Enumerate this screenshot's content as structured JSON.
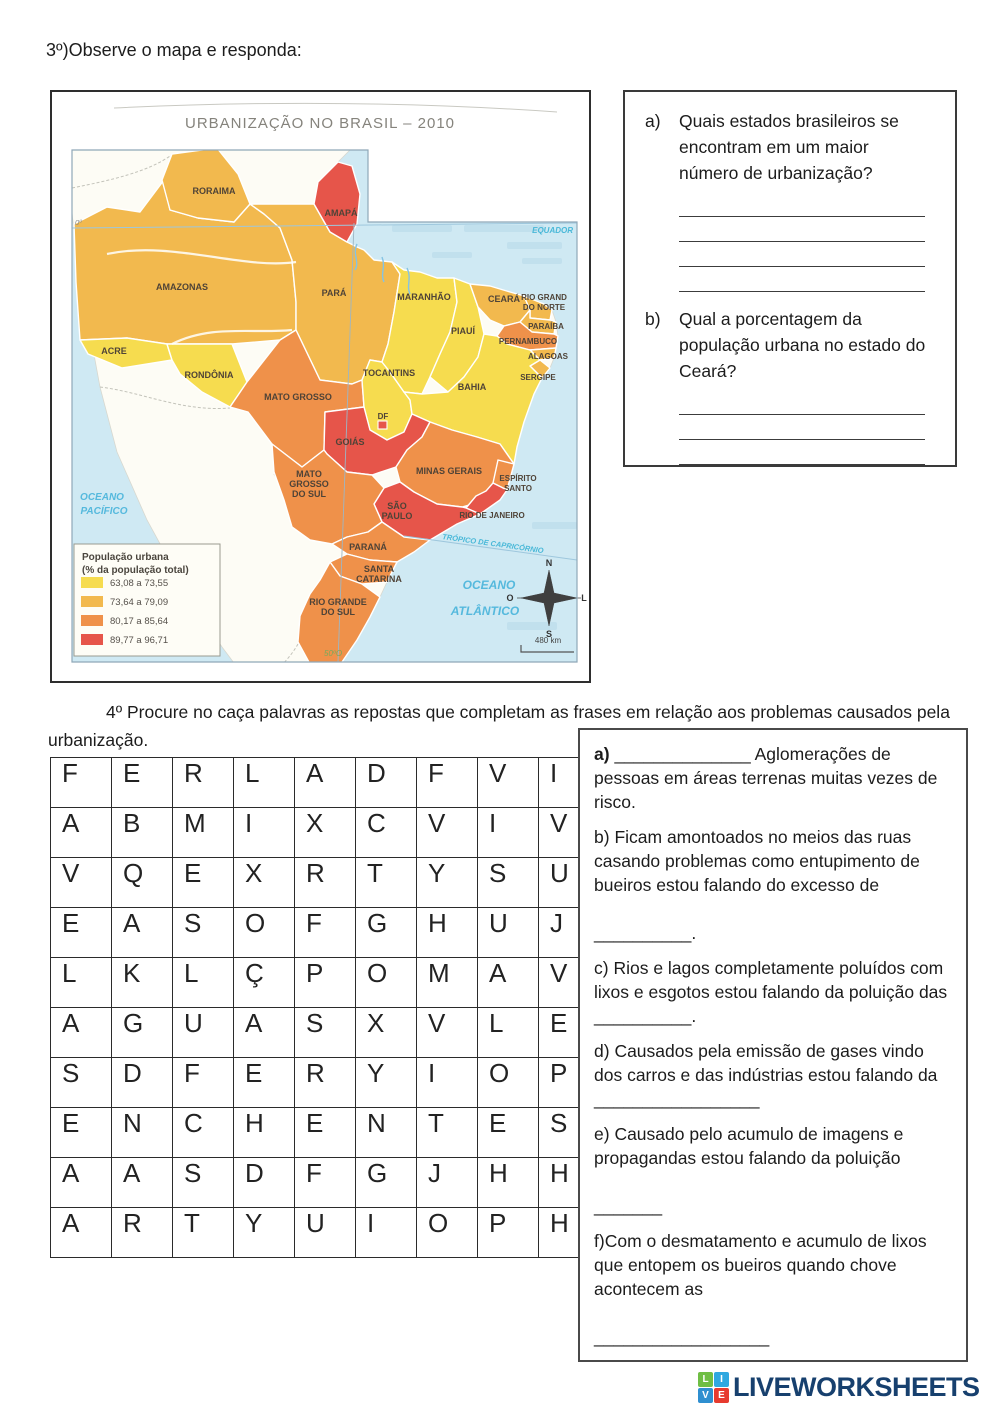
{
  "page": {
    "q3_heading": "3º)Observe o mapa e responda:",
    "q4_paragraph": "4º Procure no caça palavras as repostas que completam as frases em relação aos problemas causados pela urbanização."
  },
  "map": {
    "title": "URBANIZAÇÃO NO BRASIL – 2010",
    "colors": {
      "ocean": "#CFE9F3",
      "land": "#FDFCF5",
      "frame": "#8FA8B8"
    },
    "legend": {
      "title_lines": [
        "População urbana",
        "(% da população total)"
      ],
      "items": [
        {
          "range": "63,08 a 73,55",
          "color": "#F6DC4F"
        },
        {
          "range": "73,64 a 79,09",
          "color": "#F2B94E"
        },
        {
          "range": "80,17 a 85,64",
          "color": "#EF914A"
        },
        {
          "range": "89,77 a 96,71",
          "color": "#E6554A"
        }
      ]
    },
    "labels": {
      "equator_tick": "0º",
      "equator": "EQUADOR",
      "tropic": "TRÓPICO DE CAPRICÓRNIO",
      "meridian": "50ºO",
      "ocean_pacific": [
        "OCEANO",
        "PACÍFICO"
      ],
      "ocean_atlantic": [
        "OCEANO",
        "ATLÂNTICO"
      ],
      "scale": "480 km",
      "compass": {
        "n": "N",
        "s": "S",
        "w": "O",
        "e": "L"
      }
    },
    "states": [
      {
        "id": "amazonas",
        "label": [
          "AMAZONAS"
        ],
        "category": 1
      },
      {
        "id": "roraima",
        "label": [
          "RORAIMA"
        ],
        "category": 1
      },
      {
        "id": "para",
        "label": [
          "PARÁ"
        ],
        "category": 1
      },
      {
        "id": "amapa",
        "label": [
          "AMAPÁ"
        ],
        "category": 3
      },
      {
        "id": "acre",
        "label": [
          "ACRE"
        ],
        "category": 0
      },
      {
        "id": "rondonia",
        "label": [
          "RONDÔNIA"
        ],
        "category": 0
      },
      {
        "id": "mato_grosso",
        "label": [
          "MATO GROSSO"
        ],
        "category": 2
      },
      {
        "id": "tocantins",
        "label": [
          "TOCANTINS"
        ],
        "category": 0
      },
      {
        "id": "maranhao",
        "label": [
          "MARANHÃO"
        ],
        "category": 0
      },
      {
        "id": "piaui",
        "label": [
          "PIAUÍ"
        ],
        "category": 0
      },
      {
        "id": "ceara",
        "label": [
          "CEARÁ"
        ],
        "category": 1
      },
      {
        "id": "rn",
        "label": [
          "RIO GRAND",
          "DO NORTE"
        ],
        "category": 1,
        "small": true
      },
      {
        "id": "paraiba",
        "label": [
          "PARAÍBA"
        ],
        "category": 1,
        "small": true
      },
      {
        "id": "pernambuco",
        "label": [
          "PERNAMBUCO"
        ],
        "category": 2,
        "small": true
      },
      {
        "id": "alagoas",
        "label": [
          "ALAGOAS"
        ],
        "category": 1,
        "small": true
      },
      {
        "id": "sergipe",
        "label": [
          "SERGIPE"
        ],
        "category": 1,
        "small": true
      },
      {
        "id": "bahia",
        "label": [
          "BAHIA"
        ],
        "category": 0
      },
      {
        "id": "goias",
        "label": [
          "GOIÁS"
        ],
        "category": 3
      },
      {
        "id": "minas",
        "label": [
          "MINAS GERAIS"
        ],
        "category": 2
      },
      {
        "id": "es",
        "label": [
          "ESPÍRITO",
          "SANTO"
        ],
        "category": 2,
        "small": true
      },
      {
        "id": "rj",
        "label": [
          "RIO DE JANEIRO"
        ],
        "category": 3,
        "small": true
      },
      {
        "id": "sp",
        "label": [
          "SÃO",
          "PAULO"
        ],
        "category": 3
      },
      {
        "id": "ms",
        "label": [
          "MATO",
          "GROSSO",
          "DO SUL"
        ],
        "category": 2
      },
      {
        "id": "parana",
        "label": [
          "PARANÁ"
        ],
        "category": 2
      },
      {
        "id": "sc",
        "label": [
          "SANTA",
          "CATARINA"
        ],
        "category": 2
      },
      {
        "id": "rs",
        "label": [
          "RIO GRANDE",
          "DO SUL"
        ],
        "category": 2
      },
      {
        "id": "df",
        "label": [
          "DF"
        ],
        "category": 3,
        "small": true
      }
    ]
  },
  "q3_box": {
    "items": [
      {
        "label": "a)",
        "text": "Quais estados brasileiros se encontram em um maior número de urbanização?",
        "answer_lines": 4
      },
      {
        "label": "b)",
        "text": "Qual a porcentagem da população urbana no estado do Ceará?",
        "answer_lines": 3
      }
    ]
  },
  "word_search": {
    "rows": [
      "FERLADFVIO",
      "ABMIXCVIVB",
      "VQEXRTYSUI",
      "EASOFGHUJK",
      "LKLÇPOMAVZ",
      "AGUASXVLER",
      "SDFERYIOPN",
      "ENCHENTESV",
      "AASDFGJHHJ",
      "ARTYUIOPHO"
    ]
  },
  "q4_box": {
    "items": [
      {
        "label": "a) ",
        "bold": true,
        "text": "______________ Aglomerações de pessoas em áreas terrenas muitas vezes de risco."
      },
      {
        "label": "b) ",
        "bold": false,
        "text": "Ficam amontoados no meios das ruas casando problemas como entupimento de bueiros estou falando do excesso de\n\n__________."
      },
      {
        "label": "c) ",
        "bold": false,
        "text": "Rios e lagos completamente poluídos com lixos e esgotos estou falando da poluição das __________."
      },
      {
        "label": "d) ",
        "bold": false,
        "text": "Causados pela emissão de gases vindo dos carros e das indústrias estou falando da _________________"
      },
      {
        "label": "e) ",
        "bold": false,
        "text": "Causado pelo acumulo de imagens e propagandas estou falando da poluição\n\n_______"
      },
      {
        "label": "f)",
        "bold": false,
        "text": "Com o desmatamento e acumulo de lixos que entopem os bueiros quando chove acontecem as\n\n__________________"
      }
    ]
  },
  "footer": {
    "brand": "LIVEWORKSHEETS",
    "tiles": [
      {
        "letter": "L",
        "color": "#6FBE44"
      },
      {
        "letter": "I",
        "color": "#2FA8E0"
      },
      {
        "letter": "V",
        "color": "#2F8FD0"
      },
      {
        "letter": "E",
        "color": "#E73B2F"
      }
    ]
  }
}
